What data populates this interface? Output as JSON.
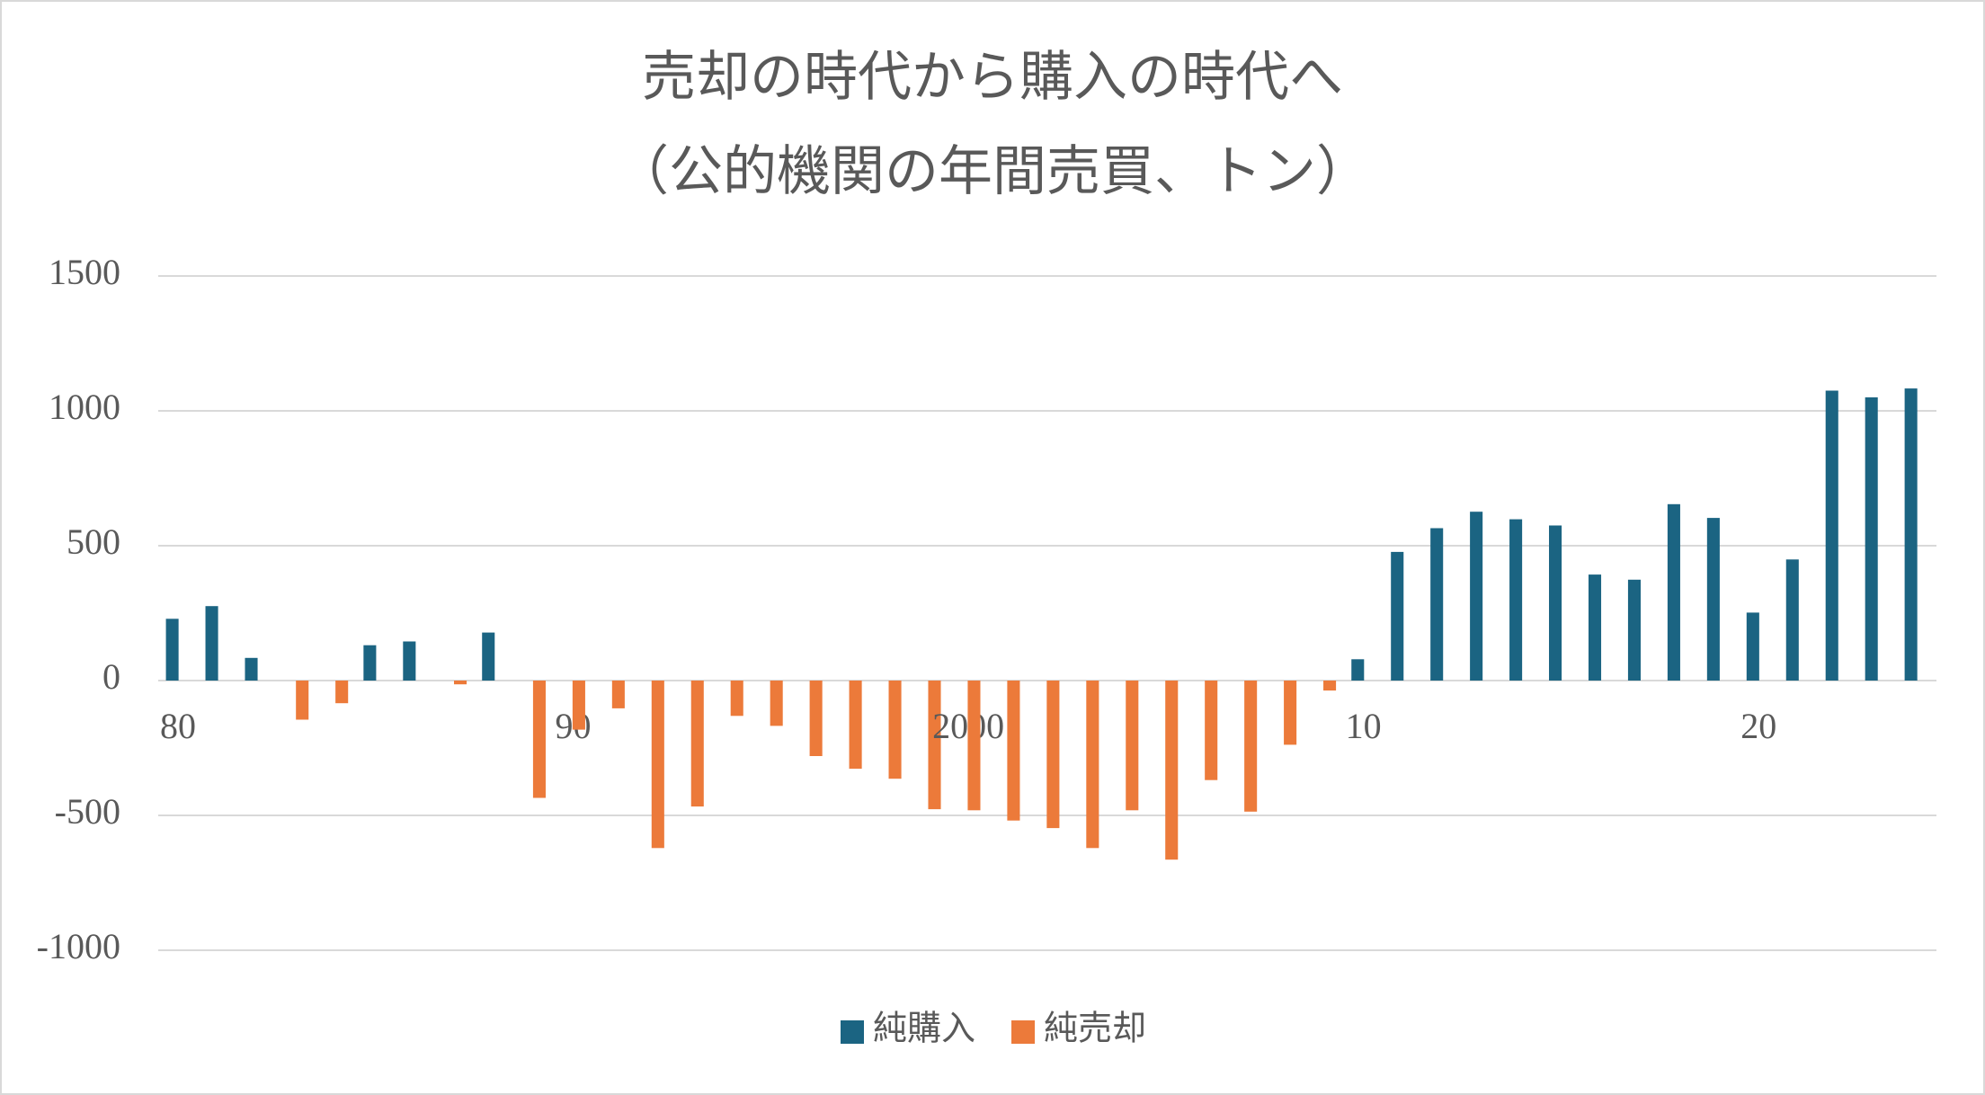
{
  "chart_data": {
    "type": "bar",
    "title": [
      "売却の時代から購入の時代へ",
      "（公的機関の年間売買、トン）"
    ],
    "categories": [
      "80",
      null,
      null,
      null,
      null,
      null,
      null,
      null,
      null,
      null,
      "90",
      null,
      null,
      null,
      null,
      null,
      null,
      null,
      null,
      null,
      "2000",
      null,
      null,
      null,
      null,
      null,
      null,
      null,
      null,
      null,
      "10",
      null,
      null,
      null,
      null,
      null,
      null,
      null,
      null,
      null,
      "20",
      null,
      null,
      null,
      null
    ],
    "series": [
      {
        "name": "純購入",
        "color": "#1b6482",
        "values": [
          229,
          276,
          84,
          null,
          null,
          131,
          145,
          null,
          178,
          null,
          null,
          null,
          null,
          null,
          null,
          null,
          null,
          null,
          null,
          null,
          null,
          null,
          null,
          null,
          null,
          null,
          null,
          null,
          null,
          null,
          79,
          477,
          565,
          626,
          598,
          575,
          393,
          374,
          654,
          603,
          252,
          449,
          1075,
          1050,
          1083
        ]
      },
      {
        "name": "純売却",
        "color": "#ec7a3a",
        "values": [
          null,
          null,
          null,
          -145,
          -84,
          null,
          null,
          -14,
          null,
          -435,
          -182,
          -103,
          -621,
          -467,
          -131,
          -168,
          -280,
          -327,
          -364,
          -477,
          -481,
          -519,
          -547,
          -621,
          -481,
          -664,
          -369,
          -486,
          -238,
          -37,
          null,
          null,
          null,
          null,
          null,
          null,
          null,
          null,
          null,
          null,
          null,
          null,
          null,
          null,
          null
        ]
      }
    ],
    "ylim": [
      -1000,
      1500
    ],
    "yticks": [
      -1000,
      -500,
      0,
      500,
      1000,
      1500
    ],
    "grid": true,
    "legend": "bottom"
  }
}
